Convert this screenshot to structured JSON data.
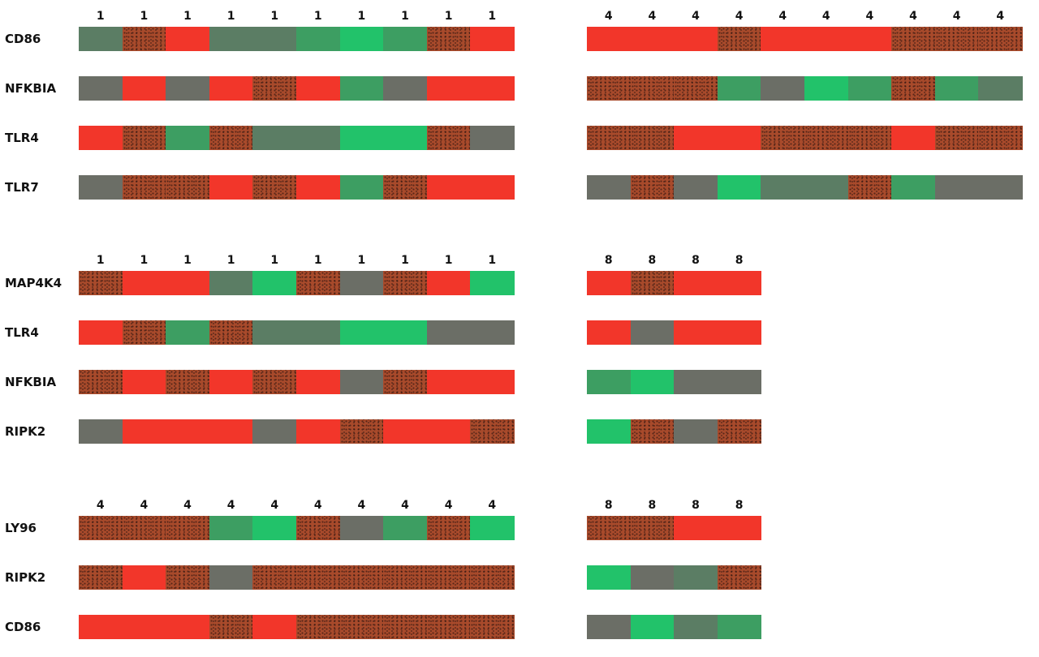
{
  "chart_data": [
    {
      "type": "heatmap",
      "columns": [
        "1",
        "1",
        "1",
        "1",
        "1",
        "1",
        "1",
        "1",
        "1",
        "1"
      ],
      "rows": [
        {
          "label": "CD86",
          "cells": [
            "green-gray",
            "brown",
            "red",
            "green-gray",
            "green-gray",
            "green",
            "bright-green",
            "green",
            "brown",
            "red"
          ]
        },
        {
          "label": "NFKBIA",
          "cells": [
            "gray",
            "red",
            "gray",
            "red",
            "brown",
            "red",
            "green",
            "gray",
            "red",
            "red"
          ]
        },
        {
          "label": "TLR4",
          "cells": [
            "red",
            "brown",
            "green",
            "brown",
            "green-gray",
            "green-gray",
            "bright-green",
            "bright-green",
            "brown",
            "gray"
          ]
        },
        {
          "label": "TLR7",
          "cells": [
            "gray",
            "brown",
            "brown",
            "red",
            "brown",
            "red",
            "green",
            "brown",
            "red",
            "red"
          ]
        }
      ]
    },
    {
      "type": "heatmap",
      "columns": [
        "4",
        "4",
        "4",
        "4",
        "4",
        "4",
        "4",
        "4",
        "4",
        "4"
      ],
      "rows": [
        {
          "label": "",
          "cells": [
            "red",
            "red",
            "red",
            "brown",
            "red",
            "red",
            "red",
            "brown",
            "brown",
            "brown"
          ]
        },
        {
          "label": "",
          "cells": [
            "brown",
            "brown",
            "brown",
            "green",
            "gray",
            "bright-green",
            "green",
            "brown",
            "green",
            "green-gray"
          ]
        },
        {
          "label": "",
          "cells": [
            "brown",
            "brown",
            "red",
            "red",
            "brown",
            "brown",
            "brown",
            "red",
            "brown",
            "brown"
          ]
        },
        {
          "label": "",
          "cells": [
            "gray",
            "brown",
            "gray",
            "bright-green",
            "green-gray",
            "green-gray",
            "brown",
            "green",
            "gray",
            "gray"
          ]
        }
      ]
    },
    {
      "type": "heatmap",
      "columns": [
        "1",
        "1",
        "1",
        "1",
        "1",
        "1",
        "1",
        "1",
        "1",
        "1"
      ],
      "rows": [
        {
          "label": "MAP4K4",
          "cells": [
            "brown",
            "red",
            "red",
            "green-gray",
            "bright-green",
            "brown",
            "gray",
            "brown",
            "red",
            "bright-green"
          ]
        },
        {
          "label": "TLR4",
          "cells": [
            "red",
            "brown",
            "green",
            "brown",
            "green-gray",
            "green-gray",
            "bright-green",
            "bright-green",
            "gray",
            "gray"
          ]
        },
        {
          "label": "NFKBIA",
          "cells": [
            "brown",
            "red",
            "brown",
            "red",
            "brown",
            "red",
            "gray",
            "brown",
            "red",
            "red"
          ]
        },
        {
          "label": "RIPK2",
          "cells": [
            "gray",
            "red",
            "red",
            "red",
            "gray",
            "red",
            "brown",
            "red",
            "red",
            "brown"
          ]
        }
      ]
    },
    {
      "type": "heatmap",
      "columns": [
        "8",
        "8",
        "8",
        "8"
      ],
      "rows": [
        {
          "label": "",
          "cells": [
            "red",
            "brown",
            "red",
            "red"
          ]
        },
        {
          "label": "",
          "cells": [
            "red",
            "gray",
            "red",
            "red"
          ]
        },
        {
          "label": "",
          "cells": [
            "green",
            "bright-green",
            "gray",
            "gray"
          ]
        },
        {
          "label": "",
          "cells": [
            "bright-green",
            "brown",
            "gray",
            "brown"
          ]
        }
      ]
    },
    {
      "type": "heatmap",
      "columns": [
        "4",
        "4",
        "4",
        "4",
        "4",
        "4",
        "4",
        "4",
        "4",
        "4"
      ],
      "rows": [
        {
          "label": "LY96",
          "cells": [
            "brown",
            "brown",
            "brown",
            "green",
            "bright-green",
            "brown",
            "gray",
            "green",
            "brown",
            "bright-green"
          ]
        },
        {
          "label": "RIPK2",
          "cells": [
            "brown",
            "red",
            "brown",
            "gray",
            "brown",
            "brown",
            "brown",
            "brown",
            "brown",
            "brown"
          ]
        },
        {
          "label": "CD86",
          "cells": [
            "red",
            "red",
            "red",
            "brown",
            "red",
            "brown",
            "brown",
            "brown",
            "brown",
            "brown"
          ]
        }
      ]
    },
    {
      "type": "heatmap",
      "columns": [
        "8",
        "8",
        "8",
        "8"
      ],
      "rows": [
        {
          "label": "",
          "cells": [
            "brown",
            "brown",
            "red",
            "red"
          ]
        },
        {
          "label": "",
          "cells": [
            "bright-green",
            "gray",
            "green-gray",
            "brown"
          ]
        },
        {
          "label": "",
          "cells": [
            "gray",
            "bright-green",
            "green-gray",
            "green"
          ]
        }
      ]
    }
  ],
  "colors": {
    "red": "#f2362a",
    "brown": "#a84a2b",
    "gray": "#6b6e66",
    "green-gray": "#5b7d64",
    "green": "#3d9e62",
    "bright-green": "#22c26a"
  },
  "dotted_levels": [
    "brown"
  ]
}
